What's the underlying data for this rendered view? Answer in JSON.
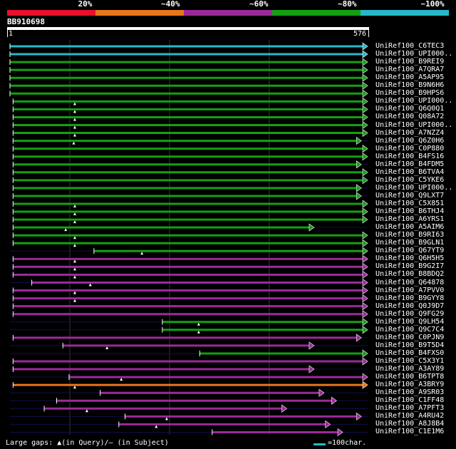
{
  "legend": {
    "segments": [
      {
        "label": "20%",
        "color": "#e8102a"
      },
      {
        "label": "~40%",
        "color": "#e8761a"
      },
      {
        "label": "~60%",
        "color": "#9a2a9a"
      },
      {
        "label": "~80%",
        "color": "#12a012"
      },
      {
        "label": "~100%",
        "color": "#27b8c8"
      }
    ]
  },
  "query": {
    "id": "BB910698",
    "start": "1",
    "end": "576"
  },
  "footer": {
    "gaps_prefix": "Large gaps:",
    "gaps_query": "(in Query)/",
    "gaps_dash": "—",
    "gaps_subject": " (in Subject)",
    "scale_label": "=100char."
  },
  "rows": [
    {
      "label": "UniRef100_C6TEC3",
      "color": "#27b8c8",
      "start": 1,
      "end": 576,
      "marker": false
    },
    {
      "label": "UniRef100_UPI000..",
      "color": "#27b8c8",
      "start": 1,
      "end": 576,
      "marker": false
    },
    {
      "label": "UniRef100_B9REI9",
      "color": "#12a012",
      "start": 1,
      "end": 576,
      "marker": false
    },
    {
      "label": "UniRef100_A7QRA7",
      "color": "#12a012",
      "start": 1,
      "end": 576,
      "marker": false
    },
    {
      "label": "UniRef100_A5AP95",
      "color": "#12a012",
      "start": 1,
      "end": 576,
      "marker": false
    },
    {
      "label": "UniRef100_B9N6H6",
      "color": "#12a012",
      "start": 1,
      "end": 576,
      "marker": false
    },
    {
      "label": "UniRef100_B9HPS6",
      "color": "#12a012",
      "start": 1,
      "end": 576,
      "marker": false
    },
    {
      "label": "UniRef100_UPI000..",
      "color": "#12a012",
      "start": 6,
      "end": 576,
      "marker": true
    },
    {
      "label": "UniRef100_Q6Q0Q1",
      "color": "#12a012",
      "start": 6,
      "end": 576,
      "marker": true
    },
    {
      "label": "UniRef100_Q08A72",
      "color": "#12a012",
      "start": 6,
      "end": 576,
      "marker": true
    },
    {
      "label": "UniRef100_UPI000..",
      "color": "#12a012",
      "start": 6,
      "end": 576,
      "marker": true
    },
    {
      "label": "UniRef100_A7NZZ4",
      "color": "#12a012",
      "start": 6,
      "end": 576,
      "marker": true
    },
    {
      "label": "UniRef100_Q6Z0H6",
      "color": "#12a012",
      "start": 6,
      "end": 566,
      "marker": true
    },
    {
      "label": "UniRef100_C0P880",
      "color": "#12a012",
      "start": 6,
      "end": 576,
      "marker": false
    },
    {
      "label": "UniRef100_B4FS16",
      "color": "#12a012",
      "start": 6,
      "end": 576,
      "marker": false
    },
    {
      "label": "UniRef100_B4FDM5",
      "color": "#12a012",
      "start": 6,
      "end": 566,
      "marker": false
    },
    {
      "label": "UniRef100_B6TVA4",
      "color": "#12a012",
      "start": 6,
      "end": 576,
      "marker": false
    },
    {
      "label": "UniRef100_C5YKE6",
      "color": "#12a012",
      "start": 6,
      "end": 576,
      "marker": false
    },
    {
      "label": "UniRef100_UPI000..",
      "color": "#12a012",
      "start": 6,
      "end": 566,
      "marker": false
    },
    {
      "label": "UniRef100_Q9LXT7",
      "color": "#12a012",
      "start": 6,
      "end": 566,
      "marker": false
    },
    {
      "label": "UniRef100_C5X851",
      "color": "#12a012",
      "start": 6,
      "end": 576,
      "marker": true
    },
    {
      "label": "UniRef100_B6THJ4",
      "color": "#12a012",
      "start": 6,
      "end": 576,
      "marker": true
    },
    {
      "label": "UniRef100_A6YRS1",
      "color": "#12a012",
      "start": 6,
      "end": 576,
      "marker": true
    },
    {
      "label": "UniRef100_A5AIM6",
      "color": "#12a012",
      "start": 6,
      "end": 490,
      "marker": true
    },
    {
      "label": "UniRef100_B9RI63",
      "color": "#12a012",
      "start": 6,
      "end": 576,
      "marker": true
    },
    {
      "label": "UniRef100_B9GLN1",
      "color": "#12a012",
      "start": 6,
      "end": 576,
      "marker": true
    },
    {
      "label": "UniRef100_Q67YT9",
      "color": "#12a012",
      "start": 136,
      "end": 576,
      "marker": true
    },
    {
      "label": "UniRef100_Q6H5H5",
      "color": "#9a2a9a",
      "start": 6,
      "end": 576,
      "marker": true
    },
    {
      "label": "UniRef100_B9G2I7",
      "color": "#9a2a9a",
      "start": 6,
      "end": 576,
      "marker": true
    },
    {
      "label": "UniRef100_B8BDQ2",
      "color": "#9a2a9a",
      "start": 6,
      "end": 576,
      "marker": true
    },
    {
      "label": "UniRef100_Q64878",
      "color": "#9a2a9a",
      "start": 36,
      "end": 576,
      "marker": true
    },
    {
      "label": "UniRef100_A7PVV0",
      "color": "#9a2a9a",
      "start": 6,
      "end": 576,
      "marker": true
    },
    {
      "label": "UniRef100_B9GYY8",
      "color": "#9a2a9a",
      "start": 6,
      "end": 576,
      "marker": true
    },
    {
      "label": "UniRef100_Q0J9D7",
      "color": "#9a2a9a",
      "start": 6,
      "end": 576,
      "marker": false
    },
    {
      "label": "UniRef100_Q9FG29",
      "color": "#9a2a9a",
      "start": 6,
      "end": 576,
      "marker": false
    },
    {
      "label": "UniRef100_Q9LH54",
      "color": "#12a012",
      "start": 246,
      "end": 576,
      "marker": true
    },
    {
      "label": "UniRef100_Q9C7C4",
      "color": "#12a012",
      "start": 246,
      "end": 576,
      "marker": true
    },
    {
      "label": "UniRef100_C0PJN9",
      "color": "#9a2a9a",
      "start": 6,
      "end": 566,
      "marker": false
    },
    {
      "label": "UniRef100_B9T5D4",
      "color": "#9a2a9a",
      "start": 86,
      "end": 490,
      "marker": true
    },
    {
      "label": "UniRef100_B4FXS0",
      "color": "#12a012",
      "start": 306,
      "end": 576,
      "marker": false
    },
    {
      "label": "UniRef100_C5X3Y1",
      "color": "#9a2a9a",
      "start": 6,
      "end": 576,
      "marker": false
    },
    {
      "label": "UniRef100_A3AY89",
      "color": "#9a2a9a",
      "start": 6,
      "end": 490,
      "marker": false
    },
    {
      "label": "UniRef100_B6TPT8",
      "color": "#9a2a9a",
      "start": 96,
      "end": 576,
      "marker": true
    },
    {
      "label": "UniRef100_A3BRY9",
      "color": "#e8761a",
      "start": 6,
      "end": 576,
      "marker": true
    },
    {
      "label": "UniRef100_A9SR03",
      "color": "#9a2a9a",
      "start": 146,
      "end": 506,
      "marker": false
    },
    {
      "label": "UniRef100_C1FF48",
      "color": "#9a2a9a",
      "start": 76,
      "end": 526,
      "marker": false
    },
    {
      "label": "UniRef100_A7PFT3",
      "color": "#9a2a9a",
      "start": 56,
      "end": 446,
      "marker": true
    },
    {
      "label": "UniRef100_A4RU42",
      "color": "#9a2a9a",
      "start": 186,
      "end": 566,
      "marker": true
    },
    {
      "label": "UniRef100_A8J8B4",
      "color": "#9a2a9a",
      "start": 176,
      "end": 516,
      "marker": true
    },
    {
      "label": "UniRef100_C1E1M6",
      "color": "#9a2a9a",
      "start": 326,
      "end": 536,
      "marker": false
    }
  ]
}
